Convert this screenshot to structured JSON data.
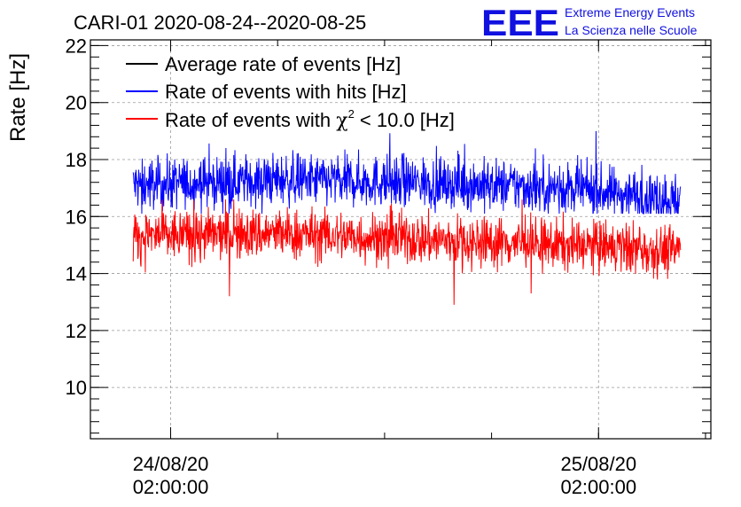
{
  "chart_data": {
    "type": "line",
    "title": "CARI-01 2020-08-24--2020-08-25",
    "ylabel": "Rate [Hz]",
    "xlabel": "",
    "ylim": [
      8.2,
      22.2
    ],
    "y_ticks": [
      10,
      12,
      14,
      16,
      18,
      20,
      22
    ],
    "y_tick_labels": [
      "10",
      "12",
      "14",
      "16",
      "18",
      "20",
      "22"
    ],
    "x_range_hours": [
      -2.5,
      32.3
    ],
    "x_ticks_hours": [
      2,
      26
    ],
    "x_tick_labels": [
      {
        "date": "24/08/20",
        "time": "02:00:00"
      },
      {
        "date": "25/08/20",
        "time": "02:00:00"
      }
    ],
    "grid": true,
    "legend_position": "top-left",
    "series": [
      {
        "name": "Average rate of events [Hz]",
        "color": "#000000",
        "visible_in_plot": false,
        "approx_mean": 17.0
      },
      {
        "name": "Rate of events with hits [Hz]",
        "color": "#0000ff",
        "x_start_hours": -0.1,
        "x_end_hours": 30.6,
        "mean_trend": [
          [
            -0.1,
            17.1
          ],
          [
            8,
            17.3
          ],
          [
            16,
            17.2
          ],
          [
            24,
            17.0
          ],
          [
            30.6,
            16.6
          ]
        ],
        "band_low": 16.1,
        "band_high": 18.2,
        "max_spike": 19.0,
        "min_dip": 15.8
      },
      {
        "name": "Rate of events with χ² < 10.0 [Hz]",
        "color": "#ff0000",
        "x_start_hours": -0.1,
        "x_end_hours": 30.6,
        "mean_trend": [
          [
            -0.1,
            15.3
          ],
          [
            8,
            15.4
          ],
          [
            16,
            15.2
          ],
          [
            24,
            15.0
          ],
          [
            30.6,
            14.8
          ]
        ],
        "band_low": 14.2,
        "band_high": 16.3,
        "max_spike": 16.6,
        "min_dip": 12.9,
        "min_dip_at_hours": 17.9
      }
    ],
    "legend_entries": [
      {
        "label": "Average rate of events [Hz]",
        "color": "#000000"
      },
      {
        "label": "Rate of events with hits [Hz]",
        "color": "#0000ff"
      },
      {
        "label_prefix": "Rate of events with ",
        "label_symbol": "χ",
        "label_sup": "2",
        "label_suffix": " < 10.0 [Hz]",
        "color": "#ff0000"
      }
    ]
  },
  "logo": {
    "mark": "EEE",
    "line1": "Extreme Energy Events",
    "line2": "La Scienza nelle Scuole",
    "color": "#1010e0"
  }
}
